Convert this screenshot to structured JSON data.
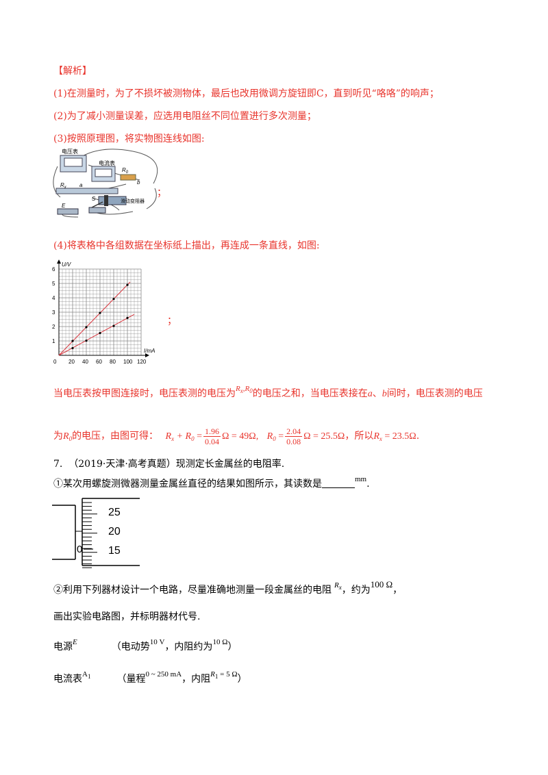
{
  "analysis": {
    "heading": "【解析】",
    "p1": "(1)在测量时，为了不损坏被测物体，最后也改用微调方旋钮即C，直到听见“咯咯”的响声；",
    "p2": "(2)为了减小测量误差，应选用电阻丝不同位置进行多次测量；",
    "p3": "(3)按照原理图，将实物图连线如图:",
    "circuit": {
      "voltmeter": "电压表",
      "ammeter": "电流表",
      "r0": "R",
      "r0_sub": "0",
      "b": "b",
      "rx": "R",
      "rx_sub": "x",
      "a": "a",
      "rheostat": "滑动变阻器",
      "e": "E",
      "s": "S",
      "suffix": "；"
    },
    "p4": "(4)将表格中各组数据在坐标纸上描出，再连成一条直线，如图:",
    "graph_suffix": "；",
    "p5_a": "当电压表按甲图连接时，电压表测的电压为",
    "p5_rx0": "R",
    "p5_sub_x": "x",
    "p5_comma": ",",
    "p5_r0": "R",
    "p5_sub_0": "0",
    "p5_b": "的电压之和，当电压表接在",
    "p5_a_label": "a",
    "p5_c": "、",
    "p5_b_label": "b",
    "p5_d": "间时，电压表测的电压",
    "p6_a": "为",
    "p6_r0": "R",
    "p6_sub0": "0",
    "p6_b": "的电压，由图可得：",
    "eq1_lhs": "R",
    "eq1_lhs_sub": "x",
    "eq1_plus": " + R",
    "eq1_plus_sub": "0",
    "eq1_eq": " =",
    "eq1_num": "1.96",
    "eq1_den": "0.04",
    "eq1_rhs": "Ω = 49Ω,",
    "eq2_lhs": "R",
    "eq2_lhs_sub": "0",
    "eq2_eq": " =",
    "eq2_num": "2.04",
    "eq2_den": "0.08",
    "eq2_rhs": "Ω = 25.5Ω",
    "p6_c": "，所以",
    "eq3_lhs": "R",
    "eq3_sub": "x",
    "eq3_rhs": " = 23.5Ω",
    "p6_end": "."
  },
  "chart_data": {
    "type": "scatter",
    "xlabel": "I/mA",
    "ylabel": "U/V",
    "xlim": [
      0,
      120
    ],
    "ylim": [
      0,
      6
    ],
    "x_ticks": [
      "0",
      "20",
      "40",
      "60",
      "80",
      "100",
      "120"
    ],
    "y_ticks": [
      "1",
      "2",
      "3",
      "4",
      "5",
      "6"
    ],
    "grid": true,
    "series": [
      {
        "points": [
          [
            20,
            1.0
          ],
          [
            40,
            1.96
          ],
          [
            60,
            2.95
          ],
          [
            80,
            3.92
          ],
          [
            100,
            4.9
          ]
        ],
        "line": [
          [
            0,
            0
          ],
          [
            104,
            5.1
          ]
        ]
      },
      {
        "points": [
          [
            20,
            0.5
          ],
          [
            40,
            1.02
          ],
          [
            60,
            1.55
          ],
          [
            80,
            2.04
          ],
          [
            100,
            2.6
          ]
        ],
        "line": [
          [
            0,
            0
          ],
          [
            110,
            2.85
          ]
        ]
      }
    ]
  },
  "question": {
    "q7_num": "7.",
    "q7_src": "（2019·天津·高考真题）现测定长金属丝的电阻率.",
    "q7_1a": "①某次用螺旋测微器测量金属丝直径的结果如图所示，其读数是",
    "q7_1unit": "mm",
    "q7_1end": ".",
    "micrometer": {
      "zero": "0",
      "t25": "25",
      "t20": "20",
      "t15": "15"
    },
    "q7_2a": "②利用下列器材设计一个电路，尽量准确地测量一段金属丝的电阻",
    "q7_2rx": "R",
    "q7_2rx_sub": "x",
    "q7_2b": "，约为",
    "q7_2val": "100 Ω",
    "q7_2c": "，",
    "q7_3": "画出实验电路图，并标明器材代号.",
    "src_label": "电源",
    "src_sym": "E",
    "src_a": "（电动势",
    "src_emf": "10 V",
    "src_b": "，内阻约为",
    "src_r": "10 Ω",
    "src_c": "）",
    "amm_label": "电流表",
    "amm_sym": "A",
    "amm_sub": "1",
    "amm_a": "（量程",
    "amm_range": "0 ~ 250 mA",
    "amm_b": "，内阻",
    "amm_r": "R",
    "amm_r_sub": "1",
    "amm_rval": " = 5 Ω",
    "amm_c": "）"
  }
}
